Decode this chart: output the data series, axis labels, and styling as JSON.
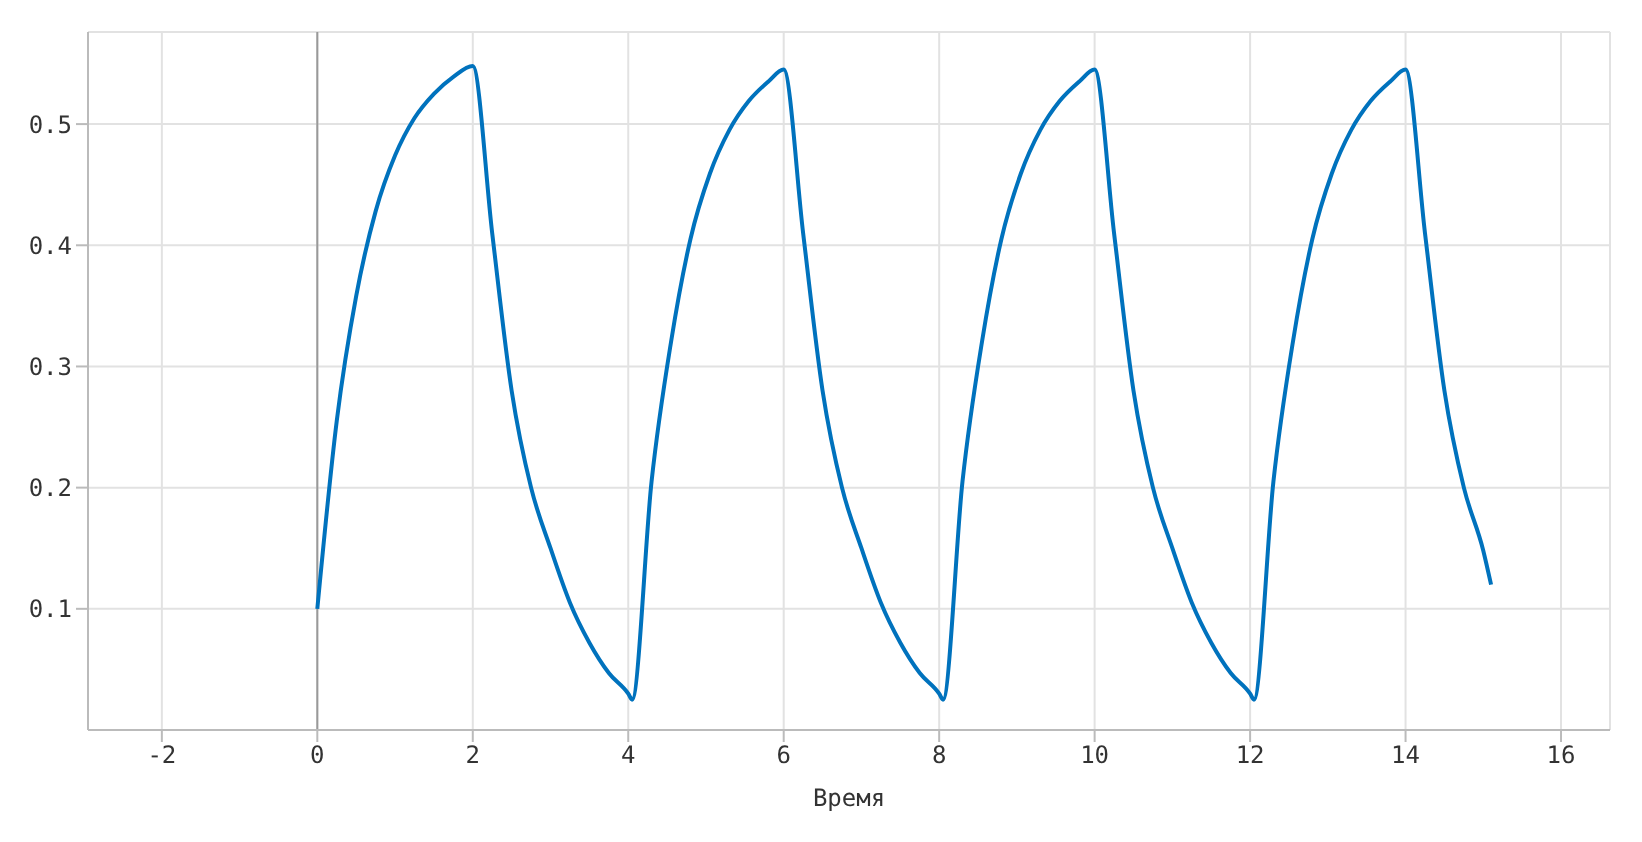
{
  "chart_data": {
    "type": "line",
    "xlabel": "Время",
    "x": [
      0,
      0.25,
      0.5,
      0.75,
      1,
      1.25,
      1.5,
      1.75,
      2,
      2.25,
      2.5,
      2.75,
      3,
      3.25,
      3.5,
      3.75,
      4,
      4.05,
      4.3,
      4.55,
      4.8,
      5.05,
      5.3,
      5.55,
      5.8,
      6,
      6.25,
      6.5,
      6.75,
      7,
      7.25,
      7.5,
      7.75,
      8,
      8.05,
      8.3,
      8.55,
      8.8,
      9.05,
      9.3,
      9.55,
      9.8,
      10,
      10.25,
      10.5,
      10.75,
      11,
      11.25,
      11.5,
      11.75,
      12,
      12.05,
      12.3,
      12.55,
      12.8,
      13.05,
      13.3,
      13.55,
      13.8,
      14,
      14.25,
      14.5,
      14.75,
      15,
      15.1
    ],
    "series": [
      {
        "color": "#0072bd",
        "values": [
          0.1,
          0.255,
          0.358,
          0.428,
          0.474,
          0.505,
          0.525,
          0.539,
          0.548,
          0.41,
          0.28,
          0.2,
          0.15,
          0.105,
          0.072,
          0.047,
          0.03,
          0.025,
          0.205,
          0.32,
          0.405,
          0.459,
          0.495,
          0.519,
          0.535,
          0.545,
          0.41,
          0.28,
          0.2,
          0.15,
          0.105,
          0.072,
          0.047,
          0.03,
          0.025,
          0.205,
          0.32,
          0.405,
          0.459,
          0.495,
          0.519,
          0.535,
          0.545,
          0.41,
          0.28,
          0.2,
          0.15,
          0.105,
          0.072,
          0.047,
          0.03,
          0.025,
          0.205,
          0.32,
          0.405,
          0.459,
          0.495,
          0.519,
          0.535,
          0.545,
          0.41,
          0.28,
          0.2,
          0.148,
          0.12
        ]
      }
    ],
    "xlim": [
      -2.95,
      16.63
    ],
    "ylim": [
      0,
      0.576
    ],
    "xticks": [
      -2,
      0,
      2,
      4,
      6,
      8,
      10,
      12,
      14,
      16
    ],
    "yticks": [
      0.1,
      0.2,
      0.3,
      0.4,
      0.5
    ],
    "ref_lines": [
      {
        "axis": "x",
        "value": 0,
        "color": "#999999"
      }
    ],
    "grid": true,
    "marker": "none",
    "line_style": "solid"
  }
}
